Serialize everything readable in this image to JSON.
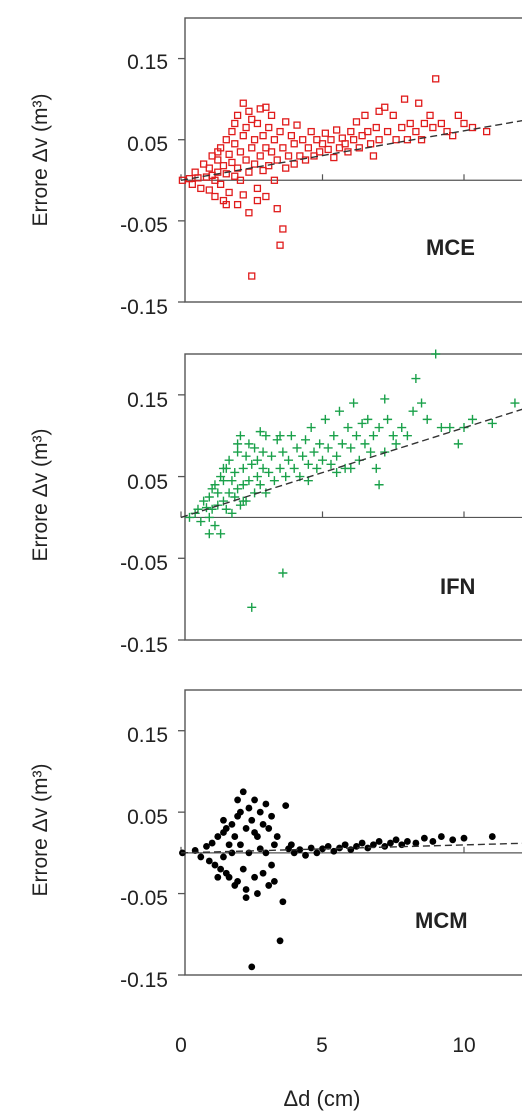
{
  "figure": {
    "xlabel": "Δd (cm)",
    "x_tick_labels": [
      "0",
      "5",
      "10"
    ]
  },
  "chart_data": [
    {
      "type": "scatter",
      "panel_label": "MCE",
      "ylabel": "Errore Δv (m³)",
      "y_tick_labels": [
        "0.15",
        "0.05",
        "-0.05",
        "-0.15"
      ],
      "y_ticks": [
        0.15,
        0.05,
        -0.05,
        -0.15
      ],
      "x_ticks": [
        0,
        5,
        10
      ],
      "xlim": [
        0,
        12.3
      ],
      "ylim": [
        -0.15,
        0.2
      ],
      "grid": false,
      "marker": "open-square",
      "color": "#e01b1b",
      "trendline": {
        "style": "dashed",
        "color": "#333333",
        "x": [
          0,
          12.3
        ],
        "y": [
          0.0,
          0.075
        ]
      },
      "points": [
        [
          0.05,
          0.0
        ],
        [
          0.3,
          0.002
        ],
        [
          0.4,
          -0.005
        ],
        [
          0.5,
          0.01
        ],
        [
          0.6,
          0.003
        ],
        [
          0.7,
          -0.01
        ],
        [
          0.8,
          0.02
        ],
        [
          0.9,
          0.004
        ],
        [
          1.0,
          0.015
        ],
        [
          1.0,
          -0.012
        ],
        [
          1.1,
          0.006
        ],
        [
          1.1,
          0.03
        ],
        [
          1.2,
          -0.02
        ],
        [
          1.2,
          0.0
        ],
        [
          1.3,
          0.025
        ],
        [
          1.3,
          0.01
        ],
        [
          1.4,
          -0.005
        ],
        [
          1.4,
          0.04
        ],
        [
          1.5,
          0.018
        ],
        [
          1.5,
          -0.025
        ],
        [
          1.6,
          0.05
        ],
        [
          1.6,
          0.008
        ],
        [
          1.7,
          0.032
        ],
        [
          1.7,
          -0.015
        ],
        [
          1.8,
          0.06
        ],
        [
          1.8,
          0.022
        ],
        [
          1.9,
          0.005
        ],
        [
          1.9,
          0.045
        ],
        [
          2.0,
          -0.03
        ],
        [
          2.0,
          0.015
        ],
        [
          2.0,
          0.08
        ],
        [
          2.1,
          0.035
        ],
        [
          2.1,
          0.0
        ],
        [
          2.2,
          0.055
        ],
        [
          2.2,
          -0.018
        ],
        [
          2.3,
          0.025
        ],
        [
          2.3,
          0.065
        ],
        [
          2.4,
          0.01
        ],
        [
          2.4,
          -0.04
        ],
        [
          2.5,
          0.04
        ],
        [
          2.5,
          0.075
        ],
        [
          2.5,
          -0.118
        ],
        [
          2.6,
          0.02
        ],
        [
          2.6,
          0.05
        ],
        [
          2.7,
          -0.01
        ],
        [
          2.7,
          0.07
        ],
        [
          2.8,
          0.03
        ],
        [
          2.8,
          0.088
        ],
        [
          2.9,
          0.012
        ],
        [
          2.9,
          0.055
        ],
        [
          3.0,
          -0.02
        ],
        [
          3.0,
          0.04
        ],
        [
          3.1,
          0.065
        ],
        [
          3.1,
          0.018
        ],
        [
          3.2,
          0.08
        ],
        [
          3.2,
          0.035
        ],
        [
          3.3,
          0.0
        ],
        [
          3.3,
          0.05
        ],
        [
          3.4,
          -0.035
        ],
        [
          3.4,
          0.025
        ],
        [
          3.5,
          0.06
        ],
        [
          3.5,
          -0.08
        ],
        [
          3.6,
          0.04
        ],
        [
          3.6,
          -0.06
        ],
        [
          3.7,
          0.072
        ],
        [
          3.7,
          0.015
        ],
        [
          3.8,
          0.03
        ],
        [
          3.9,
          0.055
        ],
        [
          4.0,
          0.02
        ],
        [
          4.0,
          0.045
        ],
        [
          4.1,
          0.068
        ],
        [
          4.2,
          0.03
        ],
        [
          4.3,
          0.05
        ],
        [
          4.4,
          0.025
        ],
        [
          4.5,
          0.04
        ],
        [
          4.6,
          0.06
        ],
        [
          4.7,
          0.03
        ],
        [
          4.8,
          0.05
        ],
        [
          4.9,
          0.035
        ],
        [
          5.0,
          0.045
        ],
        [
          5.1,
          0.058
        ],
        [
          5.2,
          0.038
        ],
        [
          5.3,
          0.05
        ],
        [
          5.4,
          0.028
        ],
        [
          5.5,
          0.062
        ],
        [
          5.6,
          0.04
        ],
        [
          5.7,
          0.052
        ],
        [
          5.8,
          0.045
        ],
        [
          5.9,
          0.035
        ],
        [
          6.0,
          0.06
        ],
        [
          6.1,
          0.05
        ],
        [
          6.2,
          0.072
        ],
        [
          6.3,
          0.04
        ],
        [
          6.4,
          0.055
        ],
        [
          6.5,
          0.08
        ],
        [
          6.6,
          0.06
        ],
        [
          6.7,
          0.045
        ],
        [
          6.8,
          0.03
        ],
        [
          6.9,
          0.065
        ],
        [
          7.0,
          0.05
        ],
        [
          7.0,
          0.085
        ],
        [
          7.2,
          0.09
        ],
        [
          7.3,
          0.06
        ],
        [
          7.5,
          0.08
        ],
        [
          7.6,
          0.05
        ],
        [
          7.8,
          0.065
        ],
        [
          7.9,
          0.1
        ],
        [
          8.0,
          0.05
        ],
        [
          8.1,
          0.07
        ],
        [
          8.3,
          0.06
        ],
        [
          8.4,
          0.095
        ],
        [
          8.5,
          0.05
        ],
        [
          8.6,
          0.07
        ],
        [
          8.8,
          0.08
        ],
        [
          8.9,
          0.065
        ],
        [
          9.0,
          0.125
        ],
        [
          9.2,
          0.07
        ],
        [
          9.4,
          0.06
        ],
        [
          9.6,
          0.055
        ],
        [
          9.8,
          0.08
        ],
        [
          10.0,
          0.07
        ],
        [
          10.3,
          0.065
        ],
        [
          10.8,
          0.06
        ],
        [
          2.2,
          0.095
        ],
        [
          1.9,
          0.07
        ],
        [
          3.0,
          0.09
        ],
        [
          2.4,
          0.085
        ],
        [
          1.6,
          -0.03
        ],
        [
          2.7,
          -0.025
        ],
        [
          1.3,
          0.035
        ]
      ]
    },
    {
      "type": "scatter",
      "panel_label": "IFN",
      "ylabel": "Errore Δv (m³)",
      "y_tick_labels": [
        "0.15",
        "0.05",
        "-0.05",
        "-0.15"
      ],
      "y_ticks": [
        0.15,
        0.05,
        -0.05,
        -0.15
      ],
      "x_ticks": [
        0,
        5,
        10
      ],
      "xlim": [
        0,
        12.3
      ],
      "ylim": [
        -0.15,
        0.2
      ],
      "grid": false,
      "marker": "plus",
      "color": "#1aa14a",
      "trendline": {
        "style": "dashed",
        "color": "#333333",
        "x": [
          0,
          12.3
        ],
        "y": [
          0.0,
          0.135
        ]
      },
      "points": [
        [
          0.3,
          0.0
        ],
        [
          0.5,
          0.005
        ],
        [
          0.6,
          0.01
        ],
        [
          0.7,
          -0.005
        ],
        [
          0.8,
          0.02
        ],
        [
          0.9,
          0.012
        ],
        [
          1.0,
          0.025
        ],
        [
          1.0,
          0.0
        ],
        [
          1.1,
          0.035
        ],
        [
          1.1,
          0.01
        ],
        [
          1.2,
          0.04
        ],
        [
          1.2,
          -0.01
        ],
        [
          1.3,
          0.03
        ],
        [
          1.3,
          0.015
        ],
        [
          1.4,
          0.05
        ],
        [
          1.4,
          -0.02
        ],
        [
          1.5,
          0.045
        ],
        [
          1.5,
          0.02
        ],
        [
          1.6,
          0.06
        ],
        [
          1.6,
          0.01
        ],
        [
          1.7,
          0.03
        ],
        [
          1.7,
          0.07
        ],
        [
          1.8,
          0.045
        ],
        [
          1.8,
          0.005
        ],
        [
          1.9,
          0.055
        ],
        [
          1.9,
          0.025
        ],
        [
          2.0,
          0.08
        ],
        [
          2.0,
          0.035
        ],
        [
          2.1,
          0.1
        ],
        [
          2.1,
          0.015
        ],
        [
          2.2,
          0.06
        ],
        [
          2.2,
          0.04
        ],
        [
          2.3,
          0.075
        ],
        [
          2.3,
          0.02
        ],
        [
          2.4,
          0.09
        ],
        [
          2.4,
          0.045
        ],
        [
          2.5,
          0.065
        ],
        [
          2.5,
          -0.11
        ],
        [
          2.6,
          0.03
        ],
        [
          2.6,
          0.085
        ],
        [
          2.7,
          0.05
        ],
        [
          2.7,
          0.07
        ],
        [
          2.8,
          0.105
        ],
        [
          2.8,
          0.04
        ],
        [
          2.9,
          0.06
        ],
        [
          2.9,
          0.08
        ],
        [
          3.0,
          0.03
        ],
        [
          3.0,
          0.1
        ],
        [
          3.1,
          0.055
        ],
        [
          3.2,
          0.075
        ],
        [
          3.3,
          0.045
        ],
        [
          3.4,
          0.095
        ],
        [
          3.5,
          0.06
        ],
        [
          3.6,
          -0.068
        ],
        [
          3.6,
          0.08
        ],
        [
          3.7,
          0.05
        ],
        [
          3.8,
          0.07
        ],
        [
          3.9,
          0.1
        ],
        [
          4.0,
          0.06
        ],
        [
          4.1,
          0.085
        ],
        [
          4.2,
          0.05
        ],
        [
          4.3,
          0.075
        ],
        [
          4.4,
          0.095
        ],
        [
          4.5,
          0.065
        ],
        [
          4.6,
          0.11
        ],
        [
          4.7,
          0.08
        ],
        [
          4.8,
          0.06
        ],
        [
          4.9,
          0.09
        ],
        [
          5.0,
          0.07
        ],
        [
          5.1,
          0.12
        ],
        [
          5.2,
          0.085
        ],
        [
          5.3,
          0.065
        ],
        [
          5.4,
          0.1
        ],
        [
          5.5,
          0.075
        ],
        [
          5.6,
          0.13
        ],
        [
          5.7,
          0.09
        ],
        [
          5.8,
          0.06
        ],
        [
          5.9,
          0.11
        ],
        [
          6.0,
          0.085
        ],
        [
          6.1,
          0.14
        ],
        [
          6.2,
          0.1
        ],
        [
          6.3,
          0.07
        ],
        [
          6.4,
          0.115
        ],
        [
          6.5,
          0.09
        ],
        [
          6.6,
          0.12
        ],
        [
          6.7,
          0.08
        ],
        [
          6.8,
          0.1
        ],
        [
          6.9,
          0.06
        ],
        [
          7.0,
          0.11
        ],
        [
          7.2,
          0.08
        ],
        [
          7.3,
          0.12
        ],
        [
          7.5,
          0.1
        ],
        [
          7.6,
          0.09
        ],
        [
          7.8,
          0.11
        ],
        [
          8.0,
          0.1
        ],
        [
          8.2,
          0.13
        ],
        [
          8.5,
          0.14
        ],
        [
          8.7,
          0.12
        ],
        [
          9.0,
          0.2
        ],
        [
          9.2,
          0.11
        ],
        [
          9.5,
          0.11
        ],
        [
          9.8,
          0.09
        ],
        [
          10.0,
          0.11
        ],
        [
          10.3,
          0.12
        ],
        [
          11.0,
          0.115
        ],
        [
          11.8,
          0.14
        ],
        [
          4.5,
          0.045
        ],
        [
          5.5,
          0.055
        ],
        [
          6.0,
          0.06
        ],
        [
          7.0,
          0.04
        ],
        [
          1.0,
          -0.02
        ],
        [
          1.5,
          0.06
        ],
        [
          2.0,
          0.09
        ],
        [
          3.5,
          0.1
        ],
        [
          2.2,
          0.02
        ],
        [
          7.2,
          0.145
        ],
        [
          8.3,
          0.17
        ]
      ]
    },
    {
      "type": "scatter",
      "panel_label": "MCM",
      "ylabel": "Errore Δv (m³)",
      "y_tick_labels": [
        "0.15",
        "0.05",
        "-0.05",
        "-0.15"
      ],
      "y_ticks": [
        0.15,
        0.05,
        -0.05,
        -0.15
      ],
      "x_ticks": [
        0,
        5,
        10
      ],
      "xlim": [
        0,
        12.3
      ],
      "ylim": [
        -0.15,
        0.2
      ],
      "grid": false,
      "marker": "filled-circle",
      "color": "#000000",
      "trendline": {
        "style": "dashed",
        "color": "#333333",
        "x": [
          0,
          12.3
        ],
        "y": [
          0.0,
          0.012
        ]
      },
      "points": [
        [
          0.05,
          0.0
        ],
        [
          0.5,
          0.003
        ],
        [
          0.7,
          -0.005
        ],
        [
          0.9,
          0.008
        ],
        [
          1.0,
          -0.01
        ],
        [
          1.1,
          0.012
        ],
        [
          1.2,
          -0.015
        ],
        [
          1.3,
          0.02
        ],
        [
          1.4,
          -0.02
        ],
        [
          1.5,
          0.025
        ],
        [
          1.5,
          -0.005
        ],
        [
          1.6,
          0.03
        ],
        [
          1.6,
          -0.025
        ],
        [
          1.7,
          0.01
        ],
        [
          1.7,
          -0.03
        ],
        [
          1.8,
          0.035
        ],
        [
          1.8,
          0.0
        ],
        [
          1.9,
          -0.04
        ],
        [
          1.9,
          0.02
        ],
        [
          2.0,
          0.045
        ],
        [
          2.0,
          -0.035
        ],
        [
          2.1,
          0.01
        ],
        [
          2.1,
          0.05
        ],
        [
          2.2,
          -0.02
        ],
        [
          2.2,
          0.075
        ],
        [
          2.3,
          0.03
        ],
        [
          2.3,
          -0.045
        ],
        [
          2.4,
          0.055
        ],
        [
          2.4,
          0.0
        ],
        [
          2.5,
          -0.14
        ],
        [
          2.5,
          0.04
        ],
        [
          2.6,
          -0.03
        ],
        [
          2.6,
          0.065
        ],
        [
          2.7,
          0.02
        ],
        [
          2.7,
          -0.05
        ],
        [
          2.8,
          0.05
        ],
        [
          2.8,
          0.005
        ],
        [
          2.9,
          0.035
        ],
        [
          2.9,
          -0.025
        ],
        [
          3.0,
          0.06
        ],
        [
          3.0,
          0.0
        ],
        [
          3.1,
          -0.04
        ],
        [
          3.1,
          0.03
        ],
        [
          3.2,
          0.045
        ],
        [
          3.3,
          0.01
        ],
        [
          3.3,
          -0.035
        ],
        [
          3.4,
          0.02
        ],
        [
          3.5,
          -0.108
        ],
        [
          3.6,
          -0.06
        ],
        [
          3.7,
          0.058
        ],
        [
          3.8,
          0.005
        ],
        [
          3.9,
          0.01
        ],
        [
          4.0,
          0.0
        ],
        [
          4.2,
          0.004
        ],
        [
          4.4,
          -0.003
        ],
        [
          4.6,
          0.006
        ],
        [
          4.8,
          0.0
        ],
        [
          5.0,
          0.005
        ],
        [
          5.2,
          0.008
        ],
        [
          5.4,
          0.002
        ],
        [
          5.6,
          0.006
        ],
        [
          5.8,
          0.01
        ],
        [
          6.0,
          0.004
        ],
        [
          6.2,
          0.008
        ],
        [
          6.4,
          0.012
        ],
        [
          6.6,
          0.006
        ],
        [
          6.8,
          0.01
        ],
        [
          7.0,
          0.014
        ],
        [
          7.2,
          0.008
        ],
        [
          7.4,
          0.012
        ],
        [
          7.6,
          0.016
        ],
        [
          7.8,
          0.01
        ],
        [
          8.0,
          0.014
        ],
        [
          8.3,
          0.012
        ],
        [
          8.6,
          0.018
        ],
        [
          8.9,
          0.014
        ],
        [
          9.2,
          0.02
        ],
        [
          9.6,
          0.016
        ],
        [
          10.0,
          0.018
        ],
        [
          11.0,
          0.02
        ],
        [
          2.0,
          0.065
        ],
        [
          1.5,
          0.04
        ],
        [
          2.3,
          -0.055
        ],
        [
          1.3,
          -0.03
        ],
        [
          2.6,
          0.025
        ],
        [
          3.2,
          -0.015
        ]
      ]
    }
  ]
}
